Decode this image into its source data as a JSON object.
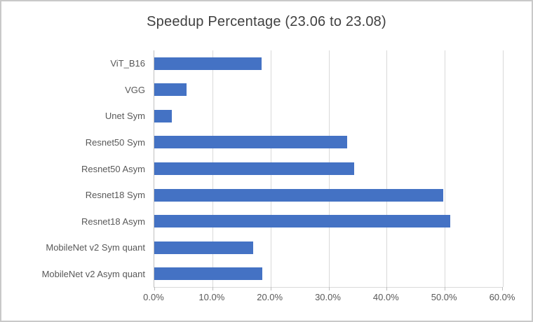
{
  "chart_data": {
    "type": "bar",
    "orientation": "horizontal",
    "title": "Speedup Percentage (23.06 to 23.08)",
    "categories_top_to_bottom": [
      "ViT_B16",
      "VGG",
      "Unet Sym",
      "Resnet50 Sym",
      "Resnet50 Asym",
      "Resnet18 Sym",
      "Resnet18 Asym",
      "MobileNet v2 Sym quant",
      "MobileNet v2 Asym quant"
    ],
    "values_percent": [
      18.5,
      5.5,
      3.0,
      33.2,
      34.4,
      49.7,
      50.9,
      17.0,
      18.6
    ],
    "xlabel": "",
    "ylabel": "",
    "xlim": [
      0,
      60
    ],
    "x_tick_labels": [
      "0.0%",
      "10.0%",
      "20.0%",
      "30.0%",
      "40.0%",
      "50.0%",
      "60.0%"
    ],
    "x_tick_values": [
      0,
      10,
      20,
      30,
      40,
      50,
      60
    ],
    "grid": "vertical",
    "legend": "none",
    "colors": {
      "bar_fill": "#4472c4",
      "gridline": "#d9d9d9",
      "axis_line": "#bfbfbf",
      "title_text": "#404040",
      "tick_text": "#595959",
      "frame_border": "#c9c9c9",
      "background": "#ffffff"
    }
  }
}
